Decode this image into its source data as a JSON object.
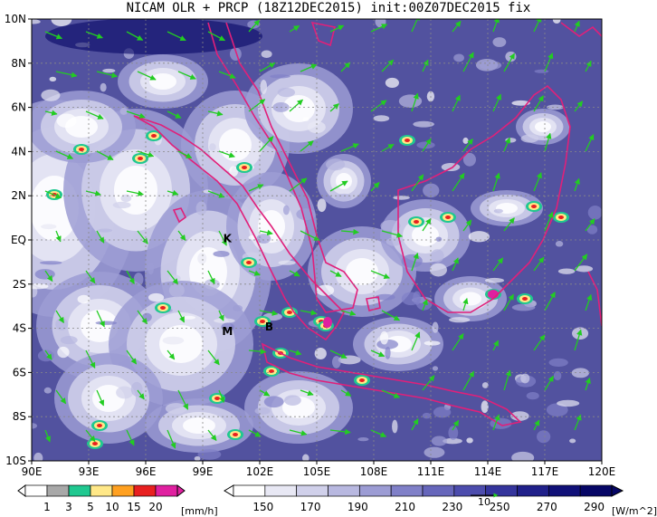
{
  "title": "NICAM OLR + PRCP (18Z12DEC2015) init:00Z07DEC2015 fix",
  "map": {
    "lat_labels": [
      "10N",
      "8N",
      "6N",
      "4N",
      "2N",
      "EQ",
      "2S",
      "4S",
      "6S",
      "8S",
      "10S"
    ],
    "lon_labels": [
      "90E",
      "93E",
      "96E",
      "99E",
      "102E",
      "105E",
      "108E",
      "111E",
      "114E",
      "117E",
      "120E"
    ],
    "lat_range": [
      -10,
      10
    ],
    "lon_range": [
      90,
      120
    ],
    "place_marks": [
      {
        "text": "K",
        "lon": 100.3,
        "lat": -0.1
      },
      {
        "text": "M",
        "lon": 100.3,
        "lat": -4.3
      },
      {
        "text": "B",
        "lon": 102.5,
        "lat": -4.1
      }
    ],
    "colors": {
      "coast": "#e0207a",
      "wind": "#22cc22",
      "grid": "#888888"
    }
  },
  "precip_colorbar": {
    "unit": "[mm/h]",
    "ticks": [
      "1",
      "3",
      "5",
      "10",
      "15",
      "20"
    ],
    "colors": [
      "#ffffff",
      "#a8a8a8",
      "#20c890",
      "#ffe888",
      "#ffa020",
      "#e82020",
      "#e020a0"
    ]
  },
  "olr_colorbar": {
    "unit": "[W/m^2]",
    "ticks": [
      "150",
      "170",
      "190",
      "210",
      "230",
      "250",
      "270",
      "290"
    ],
    "colors": [
      "#ffffff",
      "#e8e8f4",
      "#d0d0ea",
      "#b8b8e0",
      "#9c9cd4",
      "#8080c8",
      "#6666bb",
      "#4c4cad",
      "#34349c",
      "#20208a",
      "#101078",
      "#060666"
    ]
  },
  "vector_ref": {
    "label": "10"
  }
}
